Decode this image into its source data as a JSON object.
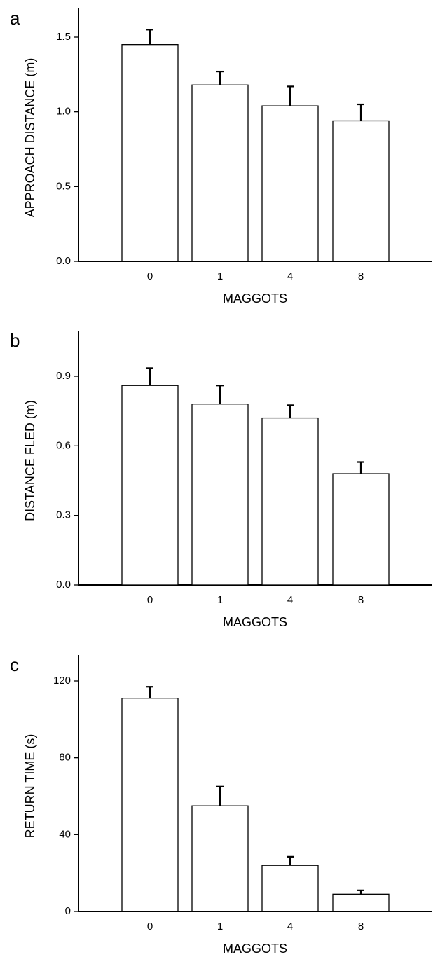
{
  "chart_data": [
    {
      "type": "bar",
      "panel_label": "a",
      "categories": [
        "0",
        "1",
        "4",
        "8"
      ],
      "values": [
        1.45,
        1.18,
        1.04,
        0.94
      ],
      "errors": [
        0.1,
        0.09,
        0.13,
        0.11
      ],
      "ylim": [
        0,
        1.5
      ],
      "yticks": [
        "0.0",
        "0.5",
        "1.0",
        "1.5"
      ],
      "xlabel": "MAGGOTS",
      "ylabel": "APPROACH DISTANCE (m)",
      "grid": false
    },
    {
      "type": "bar",
      "panel_label": "b",
      "categories": [
        "0",
        "1",
        "4",
        "8"
      ],
      "values": [
        0.86,
        0.78,
        0.72,
        0.48
      ],
      "errors": [
        0.075,
        0.08,
        0.055,
        0.05
      ],
      "ylim": [
        0,
        0.9
      ],
      "yticks": [
        "0.0",
        "0.3",
        "0.6",
        "0.9"
      ],
      "xlabel": "MAGGOTS",
      "ylabel": "DISTANCE FLED (m)",
      "grid": false
    },
    {
      "type": "bar",
      "panel_label": "c",
      "categories": [
        "0",
        "1",
        "4",
        "8"
      ],
      "values": [
        111,
        55,
        24,
        9
      ],
      "errors": [
        6,
        10,
        4.5,
        2
      ],
      "ylim": [
        0,
        120
      ],
      "yticks": [
        "0",
        "40",
        "80",
        "120"
      ],
      "xlabel": "MAGGOTS",
      "ylabel": "RETURN TIME (s)",
      "grid": false
    }
  ]
}
